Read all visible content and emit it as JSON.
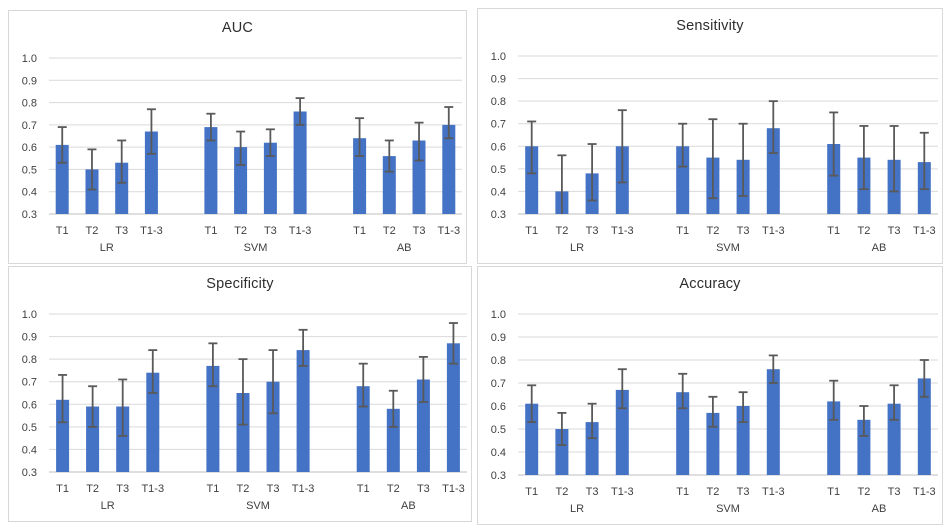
{
  "figure": {
    "background": "#ffffff",
    "panel_border_color": "#d8d8d8"
  },
  "style": {
    "bar_color": "#4472c4",
    "error_color": "#595959",
    "gridline_color": "#d9d9d9",
    "axis_line_color": "#bfbfbf",
    "tick_color": "#404040",
    "title_color": "#2e2e2e"
  },
  "chart_data": [
    {
      "type": "bar",
      "title": "AUC",
      "ylim": [
        0.3,
        1.0
      ],
      "yticks": [
        "1.0",
        "0.9",
        "0.8",
        "0.7",
        "0.6",
        "0.5",
        "0.4",
        "0.3"
      ],
      "grid": true,
      "legend": null,
      "categories": [
        "T1",
        "T2",
        "T3",
        "T1-3"
      ],
      "groups": [
        {
          "label": "LR",
          "values": [
            0.61,
            0.5,
            0.53,
            0.67
          ],
          "err_low": [
            0.53,
            0.41,
            0.44,
            0.57
          ],
          "err_high": [
            0.69,
            0.59,
            0.63,
            0.77
          ]
        },
        {
          "label": "SVM",
          "values": [
            0.69,
            0.6,
            0.62,
            0.76
          ],
          "err_low": [
            0.63,
            0.52,
            0.56,
            0.7
          ],
          "err_high": [
            0.75,
            0.67,
            0.68,
            0.82
          ]
        },
        {
          "label": "AB",
          "values": [
            0.64,
            0.56,
            0.63,
            0.7
          ],
          "err_low": [
            0.56,
            0.49,
            0.54,
            0.64
          ],
          "err_high": [
            0.73,
            0.63,
            0.71,
            0.78
          ]
        }
      ]
    },
    {
      "type": "bar",
      "title": "Sensitivity",
      "ylim": [
        0.3,
        1.0
      ],
      "yticks": [
        "1.0",
        "0.9",
        "0.8",
        "0.7",
        "0.6",
        "0.5",
        "0.4",
        "0.3"
      ],
      "grid": true,
      "legend": null,
      "categories": [
        "T1",
        "T2",
        "T3",
        "T1-3"
      ],
      "groups": [
        {
          "label": "LR",
          "values": [
            0.6,
            0.4,
            0.48,
            0.6
          ],
          "err_low": [
            0.48,
            0.3,
            0.36,
            0.44
          ],
          "err_high": [
            0.71,
            0.56,
            0.61,
            0.76
          ]
        },
        {
          "label": "SVM",
          "values": [
            0.6,
            0.55,
            0.54,
            0.68
          ],
          "err_low": [
            0.51,
            0.37,
            0.38,
            0.57
          ],
          "err_high": [
            0.7,
            0.72,
            0.7,
            0.8
          ]
        },
        {
          "label": "AB",
          "values": [
            0.61,
            0.55,
            0.54,
            0.53
          ],
          "err_low": [
            0.47,
            0.41,
            0.4,
            0.41
          ],
          "err_high": [
            0.75,
            0.69,
            0.69,
            0.66
          ]
        }
      ]
    },
    {
      "type": "bar",
      "title": "Specificity",
      "ylim": [
        0.3,
        1.0
      ],
      "yticks": [
        "1.0",
        "0.9",
        "0.8",
        "0.7",
        "0.6",
        "0.5",
        "0.4",
        "0.3"
      ],
      "grid": true,
      "legend": null,
      "categories": [
        "T1",
        "T2",
        "T3",
        "T1-3"
      ],
      "groups": [
        {
          "label": "LR",
          "values": [
            0.62,
            0.59,
            0.59,
            0.74
          ],
          "err_low": [
            0.52,
            0.5,
            0.46,
            0.65
          ],
          "err_high": [
            0.73,
            0.68,
            0.71,
            0.84
          ]
        },
        {
          "label": "SVM",
          "values": [
            0.77,
            0.65,
            0.7,
            0.84
          ],
          "err_low": [
            0.68,
            0.51,
            0.56,
            0.77
          ],
          "err_high": [
            0.87,
            0.8,
            0.84,
            0.93
          ]
        },
        {
          "label": "AB",
          "values": [
            0.68,
            0.58,
            0.71,
            0.87
          ],
          "err_low": [
            0.59,
            0.5,
            0.61,
            0.78
          ],
          "err_high": [
            0.78,
            0.66,
            0.81,
            0.96
          ]
        }
      ]
    },
    {
      "type": "bar",
      "title": "Accuracy",
      "ylim": [
        0.3,
        1.0
      ],
      "yticks": [
        "1.0",
        "0.9",
        "0.8",
        "0.7",
        "0.6",
        "0.5",
        "0.4",
        "0.3"
      ],
      "grid": true,
      "legend": null,
      "categories": [
        "T1",
        "T2",
        "T3",
        "T1-3"
      ],
      "groups": [
        {
          "label": "LR",
          "values": [
            0.61,
            0.5,
            0.53,
            0.67
          ],
          "err_low": [
            0.53,
            0.43,
            0.46,
            0.59
          ],
          "err_high": [
            0.69,
            0.57,
            0.61,
            0.76
          ]
        },
        {
          "label": "SVM",
          "values": [
            0.66,
            0.57,
            0.6,
            0.76
          ],
          "err_low": [
            0.59,
            0.51,
            0.53,
            0.7
          ],
          "err_high": [
            0.74,
            0.64,
            0.66,
            0.82
          ]
        },
        {
          "label": "AB",
          "values": [
            0.62,
            0.54,
            0.61,
            0.72
          ],
          "err_low": [
            0.54,
            0.47,
            0.54,
            0.64
          ],
          "err_high": [
            0.71,
            0.6,
            0.69,
            0.8
          ]
        }
      ]
    }
  ]
}
